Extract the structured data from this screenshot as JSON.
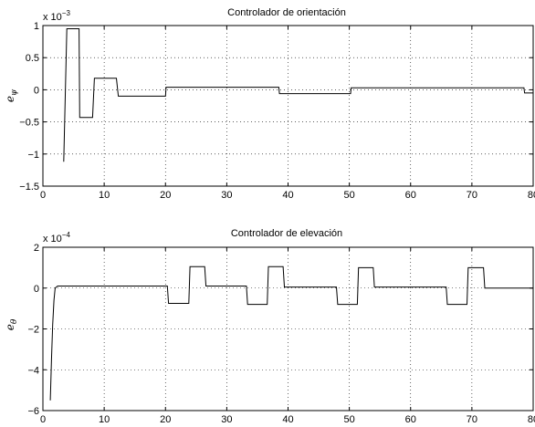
{
  "chart_data": [
    {
      "type": "line",
      "title": "Controlador de orientación",
      "ylabel": "e_ψ",
      "ylabel_main": "e",
      "ylabel_sub": "ψ",
      "exponent_label": "x 10",
      "exponent_power": "−3",
      "xlim": [
        0,
        80
      ],
      "ylim": [
        -1.5,
        1
      ],
      "xticks": [
        0,
        10,
        20,
        30,
        40,
        50,
        60,
        70,
        80
      ],
      "xtick_labels": [
        "0",
        "10",
        "20",
        "30",
        "40",
        "50",
        "60",
        "70",
        "80"
      ],
      "yticks": [
        1,
        0.5,
        0,
        -0.5,
        -1,
        -1.5
      ],
      "ytick_labels": [
        "1",
        "0.5",
        "0",
        "−0.5",
        "−1",
        "−1.5"
      ],
      "grid": true,
      "series": [
        {
          "x": [
            3.4,
            3.9,
            4.2,
            5.9,
            6.0,
            8.1,
            8.4,
            12.0,
            12.3,
            20.0,
            20.1,
            38.5,
            38.6,
            50.2,
            50.3,
            78.5,
            78.6,
            80.0
          ],
          "y": [
            -1.12,
            0.95,
            0.95,
            0.95,
            -0.43,
            -0.43,
            0.18,
            0.18,
            -0.1,
            -0.1,
            0.04,
            0.04,
            -0.06,
            -0.06,
            0.03,
            0.03,
            -0.05,
            -0.05
          ]
        }
      ]
    },
    {
      "type": "line",
      "title": "Controlador de elevación",
      "ylabel": "e_θ",
      "ylabel_main": "e",
      "ylabel_sub": "θ",
      "exponent_label": "x 10",
      "exponent_power": "−4",
      "xlim": [
        0,
        80
      ],
      "ylim": [
        -6,
        2
      ],
      "xticks": [
        0,
        10,
        20,
        30,
        40,
        50,
        60,
        70,
        80
      ],
      "xtick_labels": [
        "0",
        "10",
        "20",
        "30",
        "40",
        "50",
        "60",
        "70",
        "80"
      ],
      "yticks": [
        2,
        0,
        -2,
        -4,
        -6
      ],
      "ytick_labels": [
        "2",
        "0",
        "−2",
        "−4",
        "−6"
      ],
      "grid": true,
      "series": [
        {
          "x": [
            1.2,
            1.4,
            1.6,
            1.8,
            2.0,
            2.4,
            3.0,
            20.3,
            20.5,
            23.8,
            24.0,
            26.4,
            26.6,
            33.2,
            33.4,
            36.6,
            36.8,
            39.2,
            39.4,
            47.9,
            48.1,
            51.3,
            51.5,
            53.9,
            54.1,
            65.8,
            66.0,
            69.2,
            69.4,
            71.9,
            72.1,
            80.0
          ],
          "y": [
            -5.5,
            -3.5,
            -1.8,
            -0.6,
            0.0,
            0.1,
            0.1,
            0.1,
            -0.75,
            -0.75,
            1.05,
            1.05,
            0.1,
            0.1,
            -0.8,
            -0.8,
            1.05,
            1.05,
            0.05,
            0.05,
            -0.8,
            -0.8,
            1.0,
            1.0,
            0.05,
            0.05,
            -0.8,
            -0.8,
            1.0,
            1.0,
            0.0,
            0.0
          ]
        }
      ]
    }
  ]
}
